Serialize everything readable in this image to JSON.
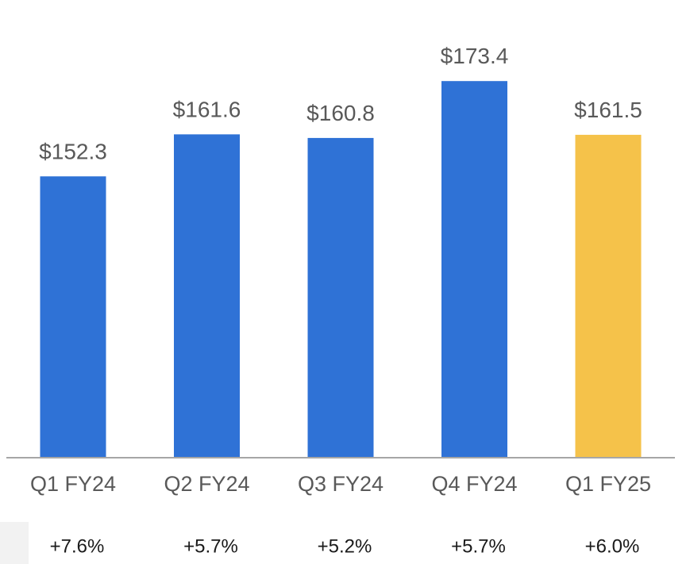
{
  "chart_data": {
    "type": "bar",
    "categories": [
      "Q1 FY24",
      "Q2 FY24",
      "Q3 FY24",
      "Q4 FY24",
      "Q1 FY25"
    ],
    "values": [
      152.3,
      161.6,
      160.8,
      173.4,
      161.5
    ],
    "value_labels": [
      "$152.3",
      "$161.6",
      "$160.8",
      "$173.4",
      "$161.5"
    ],
    "growth_labels": [
      "+7.6%",
      "+5.7%",
      "+5.2%",
      "+5.7%",
      "+6.0%"
    ],
    "bar_colors": [
      "#2f72d6",
      "#2f72d6",
      "#2f72d6",
      "#2f72d6",
      "#f5c24a"
    ],
    "ylim": [
      90,
      178
    ],
    "grid": false,
    "legend": "none",
    "title": "",
    "xlabel": "",
    "ylabel": ""
  },
  "colors": {
    "axis": "#a6a6a6",
    "label_text": "#595959",
    "growth_text": "#1a1a1a",
    "growth_panel": "#f2f2f2"
  }
}
